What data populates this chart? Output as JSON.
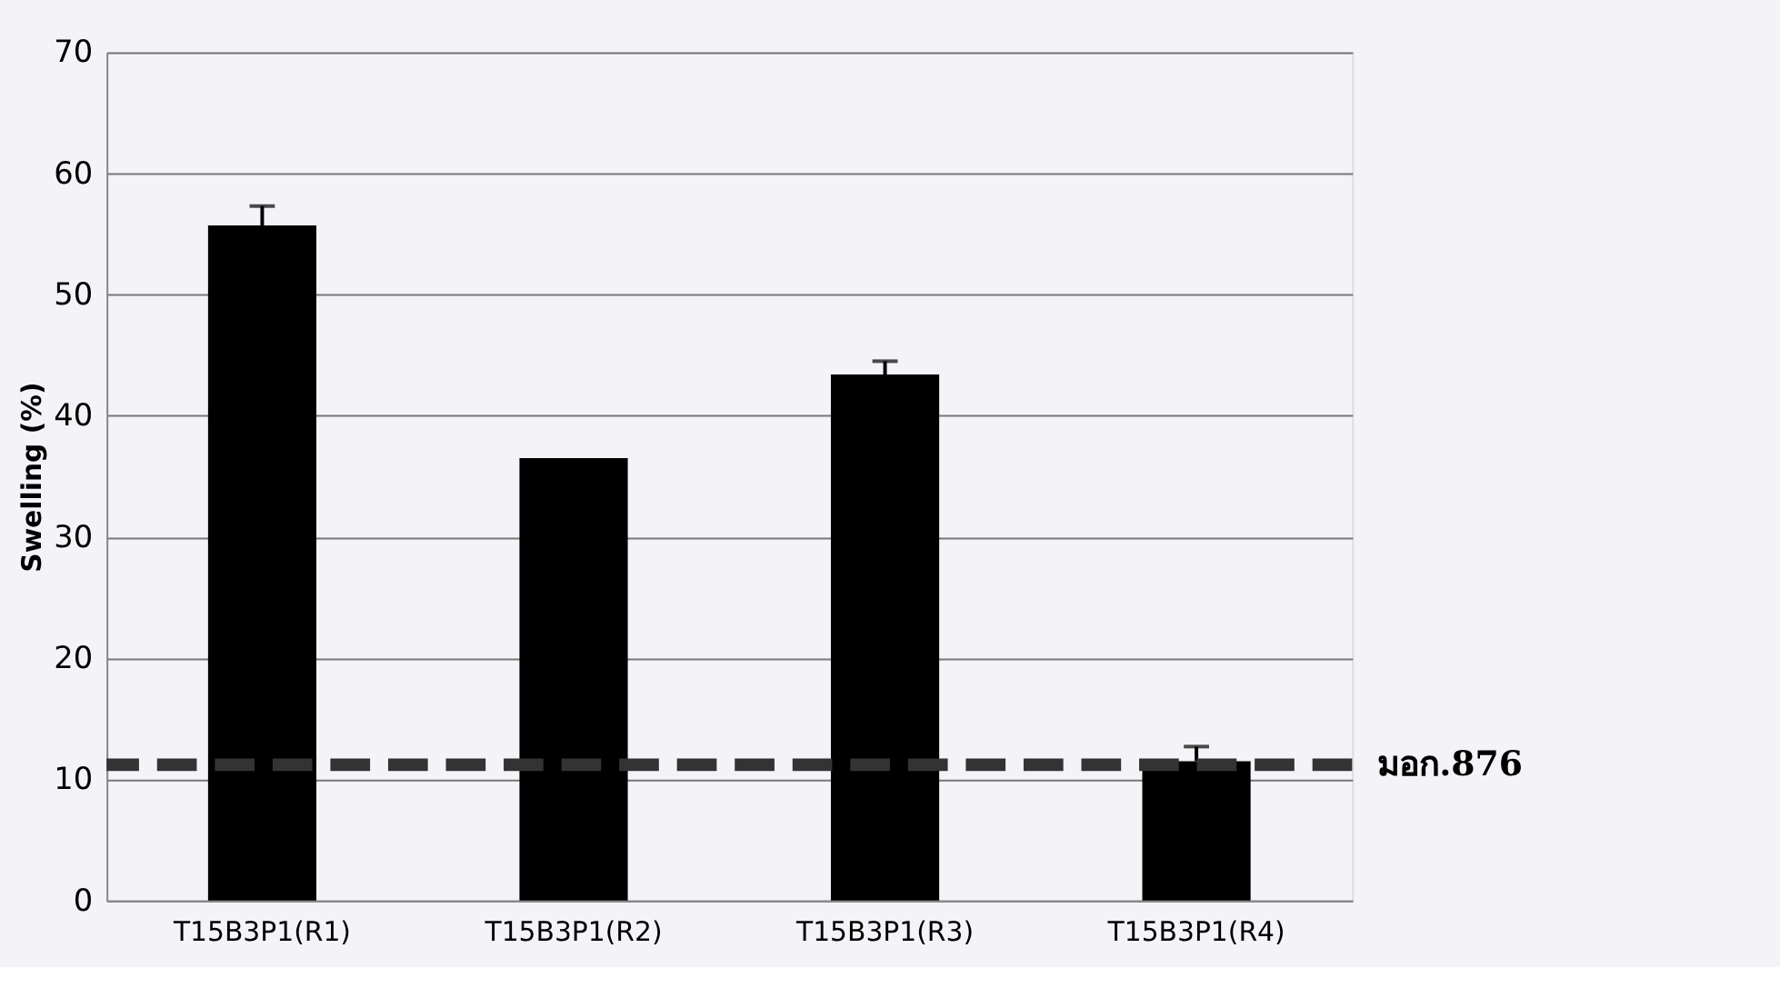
{
  "chart_data": {
    "type": "bar",
    "ylabel": "Swelling (%)",
    "categories": [
      "T15B3P1(R1)",
      "T15B3P1(R2)",
      "T15B3P1(R3)",
      "T15B3P1(R4)"
    ],
    "values": [
      55.7,
      36.5,
      43.4,
      11.5
    ],
    "color": "#000000",
    "errors": [
      [
        55.7,
        57.3
      ],
      null,
      [
        43.4,
        44.5
      ],
      [
        11.5,
        12.7
      ]
    ],
    "ylim": [
      0,
      70
    ],
    "yticks": [
      0,
      10,
      20,
      30,
      40,
      50,
      60,
      70
    ],
    "grid": "y",
    "ref_lines": [
      {
        "axis": "y",
        "value": 11.2,
        "label": "มอก.876",
        "color": "#333333",
        "line_style": "dashed"
      }
    ]
  }
}
